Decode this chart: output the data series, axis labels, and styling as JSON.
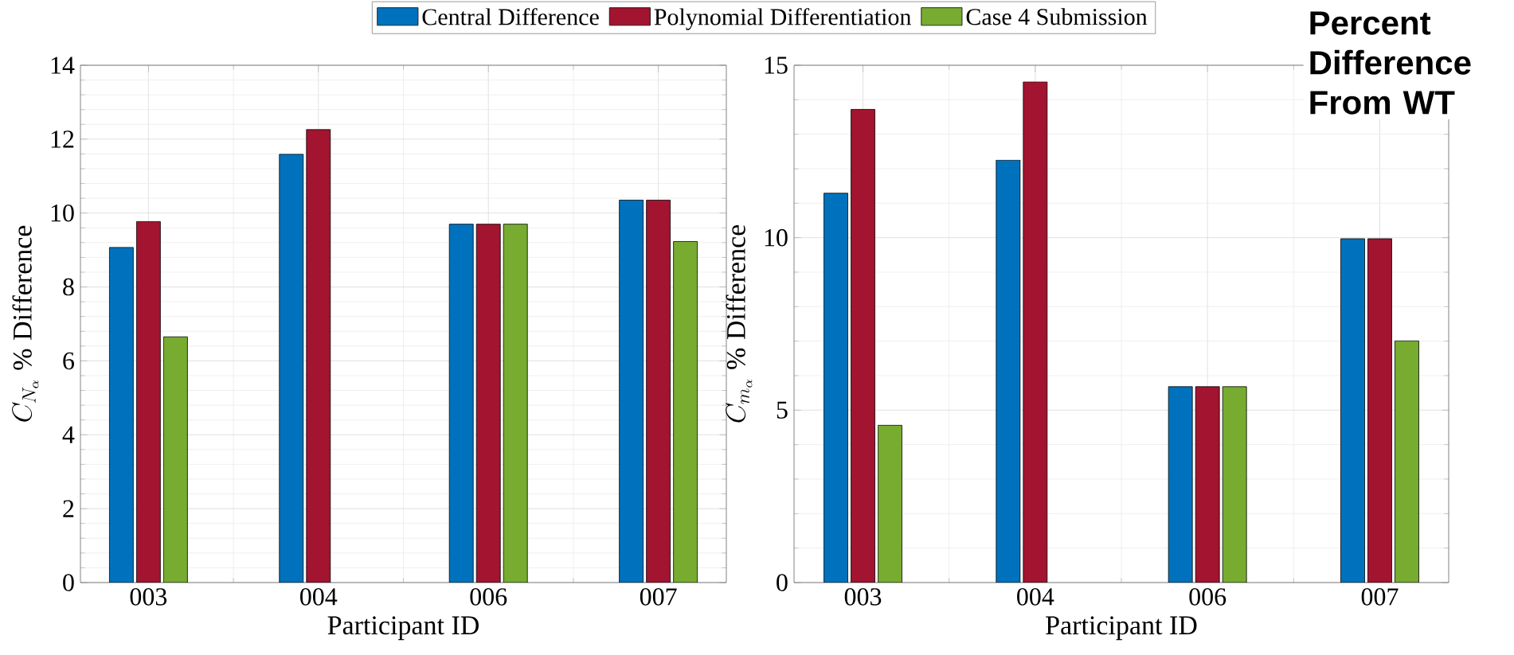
{
  "chart_data": [
    {
      "type": "bar",
      "categories": [
        "003",
        "004",
        "006",
        "007"
      ],
      "series": [
        {
          "name": "Central Difference",
          "color": "#0072bd",
          "values": [
            9.07,
            11.59,
            9.7,
            10.35
          ]
        },
        {
          "name": "Polynomial Differentiation",
          "color": "#a2142f",
          "values": [
            9.77,
            12.26,
            9.7,
            10.35
          ]
        },
        {
          "name": "Case 4 Submission",
          "color": "#77ac30",
          "values": [
            6.65,
            null,
            9.7,
            9.23
          ]
        }
      ],
      "ylim": [
        0,
        14
      ],
      "yticks": [
        0,
        2,
        4,
        6,
        8,
        10,
        12,
        14
      ],
      "xlabel": "Participant ID",
      "ylabel": "C_{N_\\alpha}\\;\\%\\;\\mathrm{Difference}",
      "grid": true,
      "legend": "top"
    },
    {
      "type": "bar",
      "title": "Percent Difference From WT",
      "categories": [
        "003",
        "004",
        "006",
        "007"
      ],
      "series": [
        {
          "color": "#0072bd",
          "values": [
            11.29,
            12.25,
            5.68,
            9.97
          ]
        },
        {
          "color": "#a2142f",
          "values": [
            13.72,
            14.52,
            5.68,
            9.97
          ]
        },
        {
          "color": "#77ac30",
          "values": [
            4.56,
            null,
            5.68,
            7.01
          ]
        }
      ],
      "ylim": [
        0,
        15
      ],
      "yticks": [
        0,
        5,
        10,
        15
      ],
      "xlabel": "Participant ID",
      "ylabel": "C_{m_\\alpha}\\;\\%\\;\\mathrm{Difference}",
      "grid": true
    }
  ]
}
